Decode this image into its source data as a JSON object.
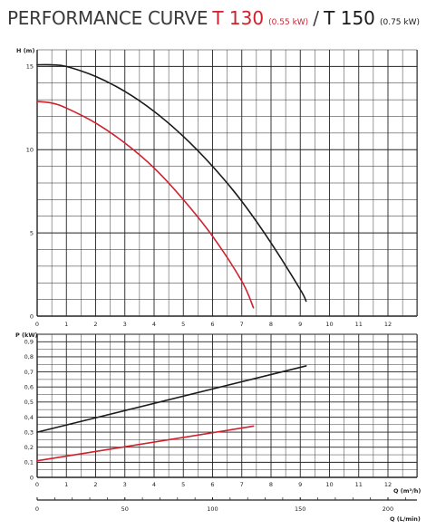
{
  "title": {
    "prefix": "PERFORMANCE CURVE",
    "model_a": "T 130",
    "power_a": "(0.55 kW)",
    "separator": "/",
    "model_b": "T 150",
    "power_b": "(0.75 kW)"
  },
  "colors": {
    "t130": "#d0202e",
    "t150": "#1a1a1a",
    "grid": "#222222",
    "title_text": "#3a3a3a"
  },
  "chart_data": [
    {
      "type": "line",
      "ylabel": "H (m)",
      "xlim": [
        0,
        13
      ],
      "ylim": [
        0,
        16
      ],
      "grid": true,
      "x_ticks": [
        "0",
        "1",
        "2",
        "3",
        "4",
        "5",
        "6",
        "7",
        "8",
        "9",
        "10",
        "11",
        "12"
      ],
      "y_ticks": [
        {
          "value": 0,
          "label": "0"
        },
        {
          "value": 5,
          "label": "5"
        },
        {
          "value": 10,
          "label": "10"
        },
        {
          "value": 15,
          "label": "15"
        }
      ],
      "series": [
        {
          "model": "T 150",
          "color": "#1a1a1a",
          "x": [
            0,
            0.5,
            1,
            2,
            3,
            4,
            5,
            6,
            7,
            8,
            9,
            9.2
          ],
          "y": [
            15.1,
            15.1,
            15.0,
            14.4,
            13.5,
            12.3,
            10.8,
            9.0,
            6.9,
            4.4,
            1.6,
            0.9
          ]
        },
        {
          "model": "T 130",
          "color": "#d0202e",
          "x": [
            0,
            0.5,
            1,
            2,
            3,
            4,
            5,
            6,
            7,
            7.4
          ],
          "y": [
            12.9,
            12.8,
            12.5,
            11.6,
            10.4,
            8.9,
            7.0,
            4.8,
            2.1,
            0.5
          ]
        }
      ]
    },
    {
      "type": "line",
      "ylabel": "P (kW)",
      "xlabel": "Q (m³/h)",
      "xlabel2": "Q (L/min)",
      "xlim": [
        0,
        13
      ],
      "ylim": [
        0,
        0.95
      ],
      "grid": true,
      "x_ticks": [
        "0",
        "1",
        "2",
        "3",
        "4",
        "5",
        "6",
        "7",
        "8",
        "9",
        "10",
        "11",
        "12"
      ],
      "y_ticks": [
        {
          "value": 0,
          "label": "0"
        },
        {
          "value": 0.1,
          "label": "0,1"
        },
        {
          "value": 0.2,
          "label": "0,2"
        },
        {
          "value": 0.3,
          "label": "0,3"
        },
        {
          "value": 0.4,
          "label": "0,4"
        },
        {
          "value": 0.5,
          "label": "0,5"
        },
        {
          "value": 0.6,
          "label": "0,6"
        },
        {
          "value": 0.7,
          "label": "0,7"
        },
        {
          "value": 0.8,
          "label": "0,8"
        },
        {
          "value": 0.9,
          "label": "0,9"
        }
      ],
      "lmin_ticks": [
        {
          "value": 0,
          "label": "0"
        },
        {
          "value": 50,
          "label": "50"
        },
        {
          "value": 100,
          "label": "100"
        },
        {
          "value": 150,
          "label": "150"
        },
        {
          "value": 200,
          "label": "200"
        }
      ],
      "series": [
        {
          "model": "T 150",
          "color": "#1a1a1a",
          "x": [
            0,
            9.2
          ],
          "y": [
            0.3,
            0.74
          ]
        },
        {
          "model": "T 130",
          "color": "#d0202e",
          "x": [
            0,
            7.4
          ],
          "y": [
            0.11,
            0.34
          ]
        }
      ]
    }
  ]
}
